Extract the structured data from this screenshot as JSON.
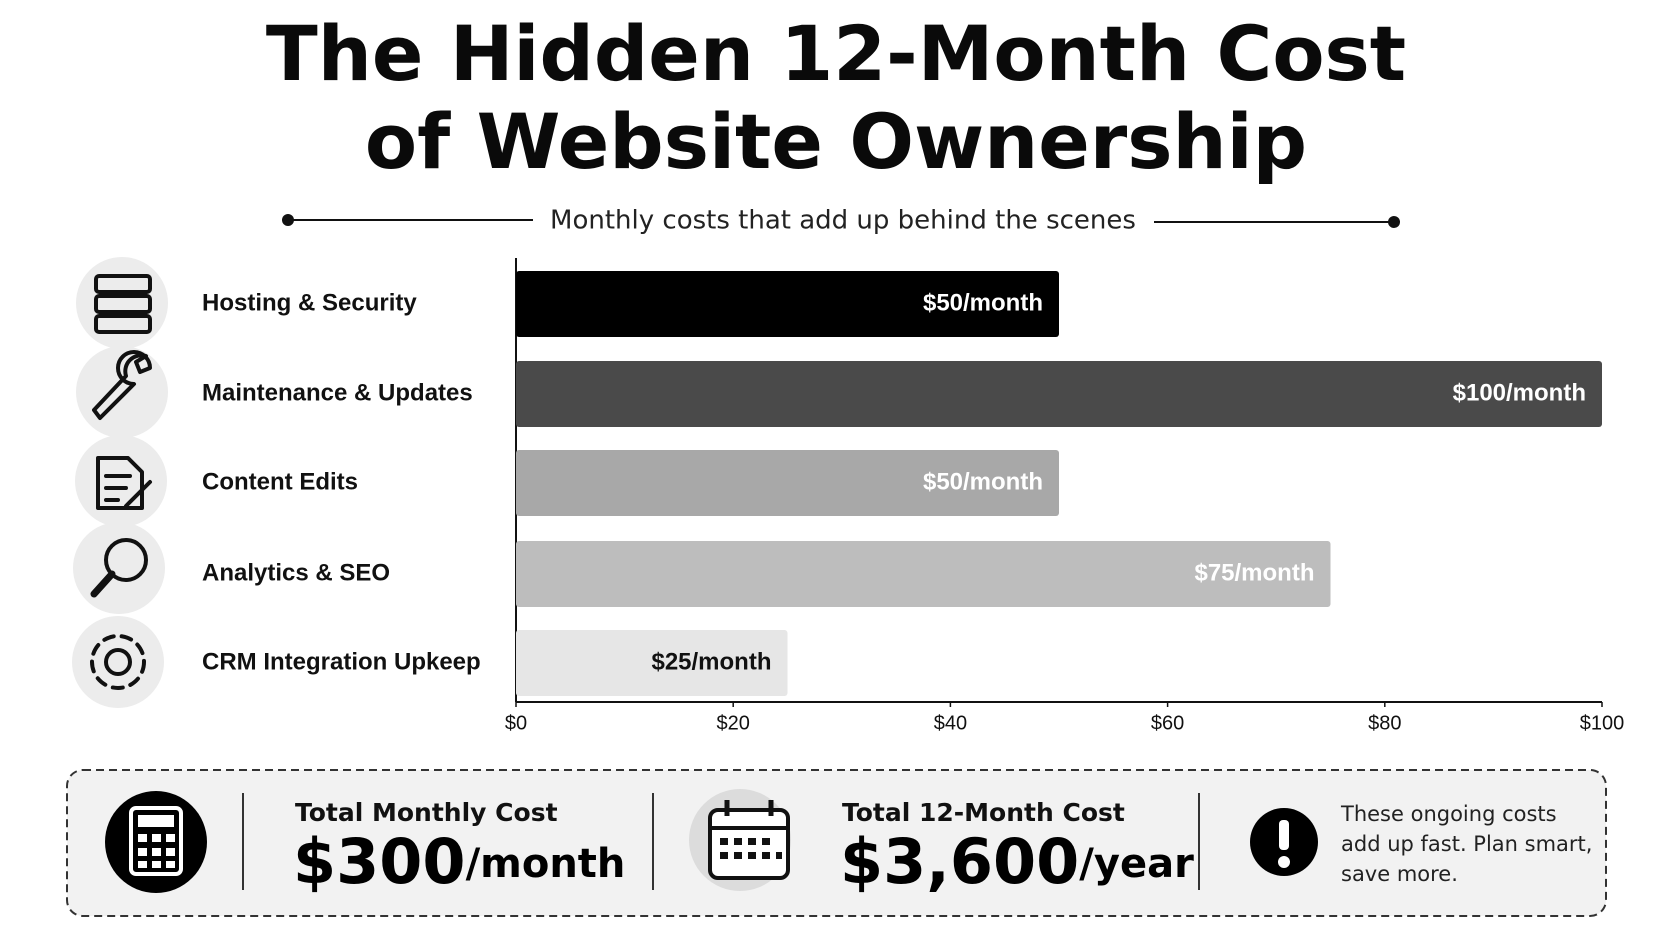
{
  "chart_data": {
    "type": "hbar",
    "title": [
      "The Hidden 12-Month Cost",
      "of Website Ownership"
    ],
    "subtitle": "Monthly costs that add up behind the scenes",
    "categories": [
      "Hosting & Security",
      "Maintenance & Updates",
      "Content Edits",
      "Analytics & SEO",
      "CRM Integration Upkeep"
    ],
    "values": [
      50,
      100,
      50,
      75,
      25
    ],
    "value_labels": [
      "$50/month",
      "$100/month",
      "$50/month",
      "$75/month",
      "$25/month"
    ],
    "colors": [
      "#000000",
      "#4a4a4a",
      "#a8a8a8",
      "#bdbdbd",
      "#e6e6e6"
    ],
    "label_colors": [
      "#ffffff",
      "#ffffff",
      "#ffffff",
      "#ffffff",
      "#111111"
    ],
    "xlim": [
      0,
      100
    ],
    "xticks": [
      {
        "value": 0,
        "label": "$0"
      },
      {
        "value": 20,
        "label": "$20"
      },
      {
        "value": 40,
        "label": "$40"
      },
      {
        "value": 60,
        "label": "$60"
      },
      {
        "value": 80,
        "label": "$80"
      },
      {
        "value": 100,
        "label": "$100"
      }
    ],
    "grid": false
  },
  "summary": {
    "monthly": {
      "label": "Total Monthly Cost",
      "amount": "$300",
      "unit": "/month"
    },
    "annual": {
      "label": "Total 12-Month Cost",
      "amount": "$3,600",
      "unit": "/year"
    },
    "note": [
      "These ongoing costs",
      "add up fast. Plan smart,",
      "save more."
    ]
  }
}
